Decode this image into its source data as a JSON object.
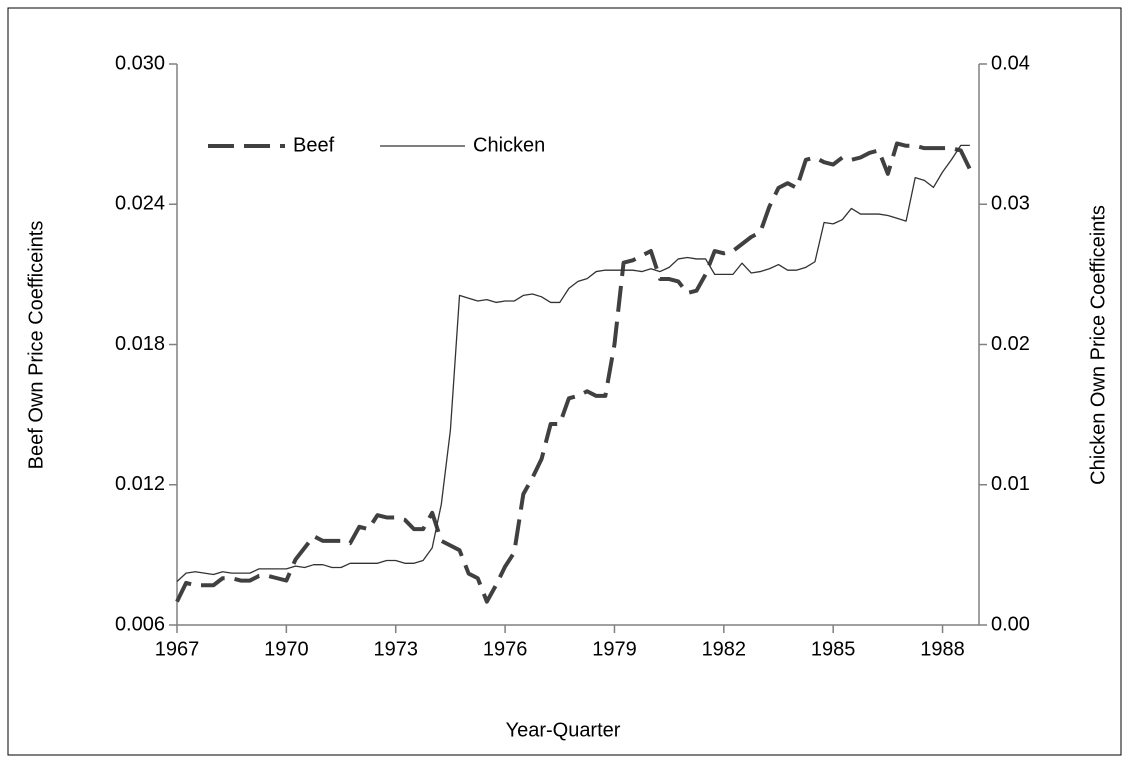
{
  "chart_data": {
    "type": "line",
    "x_label": "Year-Quarter",
    "y_label": "Beef Own Price Coefficeints",
    "y2_label": "Chicken Own Price Coefficeints",
    "x": [
      1967,
      1967.25,
      1967.5,
      1967.75,
      1968,
      1968.25,
      1968.5,
      1968.75,
      1969,
      1969.25,
      1969.5,
      1969.75,
      1970,
      1970.25,
      1970.5,
      1970.75,
      1971,
      1971.25,
      1971.5,
      1971.75,
      1972,
      1972.25,
      1972.5,
      1972.75,
      1973,
      1973.25,
      1973.5,
      1973.75,
      1974,
      1974.25,
      1974.5,
      1974.75,
      1975,
      1975.25,
      1975.5,
      1975.75,
      1976,
      1976.25,
      1976.5,
      1976.75,
      1977,
      1977.25,
      1977.5,
      1977.75,
      1978,
      1978.25,
      1978.5,
      1978.75,
      1979,
      1979.25,
      1979.5,
      1979.75,
      1980,
      1980.25,
      1980.5,
      1980.75,
      1981,
      1981.25,
      1981.5,
      1981.75,
      1982,
      1982.25,
      1982.5,
      1982.75,
      1983,
      1983.25,
      1983.5,
      1983.75,
      1984,
      1984.25,
      1984.5,
      1984.75,
      1985,
      1985.25,
      1985.5,
      1985.75,
      1986,
      1986.25,
      1986.5,
      1986.75,
      1987,
      1987.25,
      1987.5,
      1987.75,
      1988,
      1988.25,
      1988.5,
      1988.75
    ],
    "series": [
      {
        "name": "Beef",
        "color": "#404040",
        "style": "dashed",
        "values": [
          0.007,
          0.0078,
          0.0077,
          0.0077,
          0.0077,
          0.008,
          0.008,
          0.0079,
          0.0079,
          0.0081,
          0.0081,
          0.008,
          0.0079,
          0.0088,
          0.0093,
          0.0098,
          0.0096,
          0.0096,
          0.0096,
          0.0095,
          0.0102,
          0.0101,
          0.0107,
          0.0106,
          0.0106,
          0.0105,
          0.0101,
          0.0101,
          0.0108,
          0.0096,
          0.0094,
          0.0092,
          0.0082,
          0.008,
          0.007,
          0.0077,
          0.0085,
          0.0091,
          0.0116,
          0.0123,
          0.0131,
          0.0146,
          0.0146,
          0.0157,
          0.0158,
          0.016,
          0.0158,
          0.0158,
          0.018,
          0.0215,
          0.0216,
          0.0218,
          0.022,
          0.0208,
          0.0208,
          0.0207,
          0.0202,
          0.0203,
          0.021,
          0.022,
          0.0219,
          0.022,
          0.0223,
          0.0226,
          0.0228,
          0.0239,
          0.0247,
          0.0249,
          0.0247,
          0.0259,
          0.026,
          0.0258,
          0.0257,
          0.026,
          0.0259,
          0.026,
          0.0262,
          0.0263,
          0.0253,
          0.0266,
          0.0265,
          0.0265,
          0.0264,
          0.0264,
          0.0264,
          0.0264,
          0.0263,
          0.0255
        ]
      },
      {
        "name": "Chicken",
        "color": "#333333",
        "style": "solid",
        "axis": "y2",
        "values": [
          0.0031,
          0.0037,
          0.0038,
          0.0037,
          0.0036,
          0.0038,
          0.0037,
          0.0037,
          0.0037,
          0.004,
          0.004,
          0.004,
          0.004,
          0.0042,
          0.0041,
          0.0043,
          0.0043,
          0.0041,
          0.0041,
          0.0044,
          0.0044,
          0.0044,
          0.0044,
          0.0046,
          0.0046,
          0.0044,
          0.0044,
          0.0046,
          0.0055,
          0.0086,
          0.0139,
          0.0235,
          0.0233,
          0.0231,
          0.0232,
          0.023,
          0.0231,
          0.0231,
          0.0235,
          0.0236,
          0.0234,
          0.023,
          0.023,
          0.024,
          0.0245,
          0.0247,
          0.0252,
          0.0253,
          0.0253,
          0.0253,
          0.0253,
          0.0252,
          0.0254,
          0.0252,
          0.0255,
          0.0261,
          0.0262,
          0.0261,
          0.0261,
          0.025,
          0.025,
          0.025,
          0.0258,
          0.0251,
          0.0252,
          0.0254,
          0.0257,
          0.0253,
          0.0253,
          0.0255,
          0.0259,
          0.0287,
          0.0286,
          0.0289,
          0.0297,
          0.0293,
          0.0293,
          0.0293,
          0.0292,
          0.029,
          0.0288,
          0.0319,
          0.0317,
          0.0312,
          0.0323,
          0.0332,
          0.0342,
          0.0342
        ]
      }
    ],
    "xlim": [
      1967,
      1989
    ],
    "xticks": [
      1967,
      1970,
      1973,
      1976,
      1979,
      1982,
      1985,
      1988
    ],
    "ylim": [
      0.006,
      0.03
    ],
    "yticks": [
      0.006,
      0.012,
      0.018,
      0.024,
      {
        "value": 0.03,
        "label": "0.030"
      }
    ],
    "y2lim": [
      0,
      0.04
    ],
    "y2ticks": [
      {
        "value": 0,
        "label": "0.00"
      },
      0.01,
      0.02,
      0.03,
      0.04
    ],
    "legend": "top-left"
  }
}
